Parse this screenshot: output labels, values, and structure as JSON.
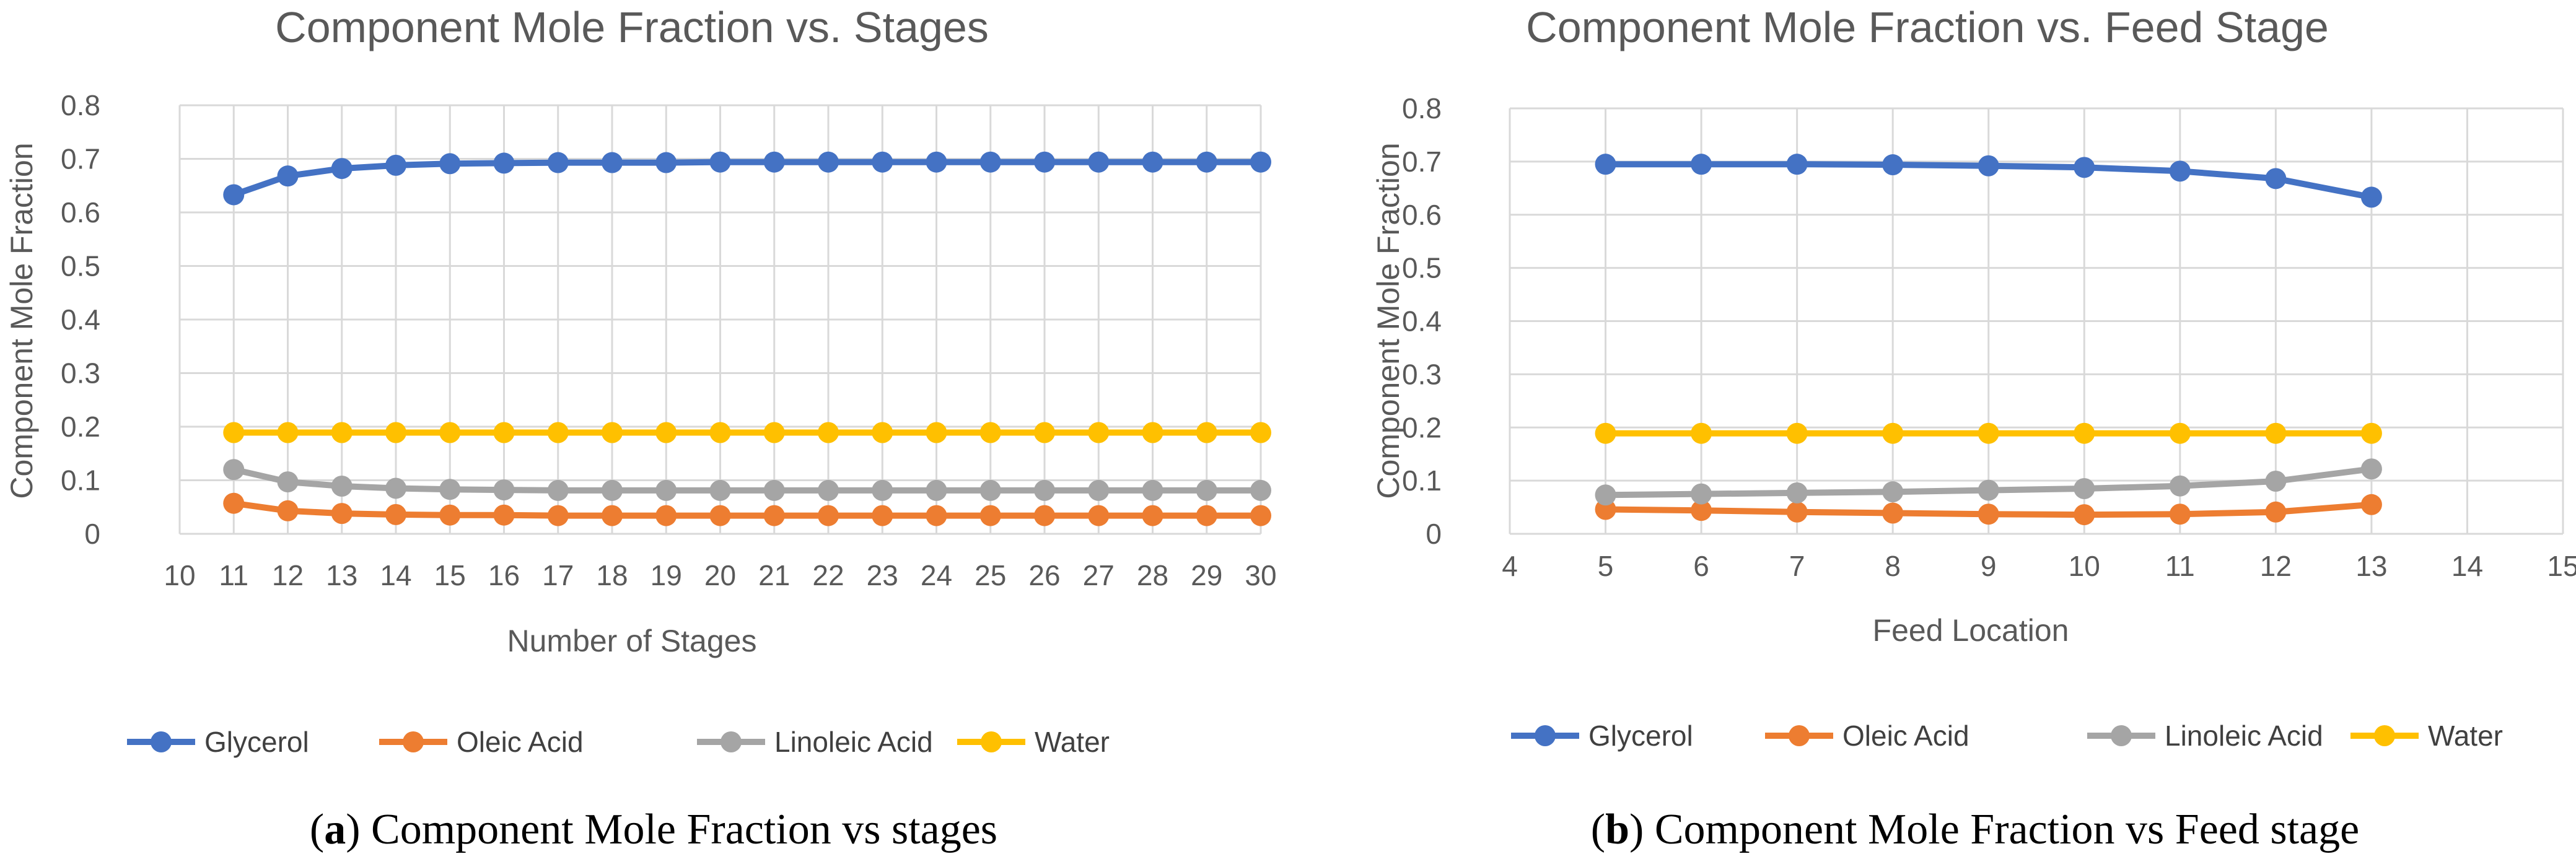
{
  "figure": {
    "panel_count": 2
  },
  "chart_data": [
    {
      "type": "line",
      "title": "Component Mole Fraction vs. Stages",
      "xlabel": "Number of Stages",
      "ylabel": "Component Mole Fraction",
      "xlim": [
        10,
        30
      ],
      "ylim": [
        0,
        0.8
      ],
      "x_ticks": [
        "10",
        "11",
        "12",
        "13",
        "14",
        "15",
        "16",
        "17",
        "18",
        "19",
        "20",
        "21",
        "22",
        "23",
        "24",
        "25",
        "26",
        "27",
        "28",
        "29",
        "30"
      ],
      "y_ticks": [
        "0",
        "0.1",
        "0.2",
        "0.3",
        "0.4",
        "0.5",
        "0.6",
        "0.7",
        "0.8"
      ],
      "x": [
        11,
        12,
        13,
        14,
        15,
        16,
        17,
        18,
        19,
        20,
        21,
        22,
        23,
        24,
        25,
        26,
        27,
        28,
        29,
        30
      ],
      "grid": "vertical and horizontal",
      "legend_position": "bottom",
      "caption_letter": "a",
      "caption_text": "Component Mole Fraction vs stages",
      "series": [
        {
          "name": "Glycerol",
          "color": "#4472C4",
          "values": [
            0.633,
            0.668,
            0.682,
            0.688,
            0.691,
            0.692,
            0.693,
            0.693,
            0.693,
            0.694,
            0.694,
            0.694,
            0.694,
            0.694,
            0.694,
            0.694,
            0.694,
            0.694,
            0.694,
            0.694
          ]
        },
        {
          "name": "Oleic Acid",
          "color": "#ED7D31",
          "values": [
            0.057,
            0.043,
            0.038,
            0.036,
            0.035,
            0.035,
            0.034,
            0.034,
            0.034,
            0.034,
            0.034,
            0.034,
            0.034,
            0.034,
            0.034,
            0.034,
            0.034,
            0.034,
            0.034,
            0.034
          ]
        },
        {
          "name": "Linoleic Acid",
          "color": "#A5A5A5",
          "values": [
            0.12,
            0.097,
            0.089,
            0.085,
            0.083,
            0.082,
            0.081,
            0.081,
            0.081,
            0.081,
            0.081,
            0.081,
            0.081,
            0.081,
            0.081,
            0.081,
            0.081,
            0.081,
            0.081,
            0.081
          ]
        },
        {
          "name": "Water",
          "color": "#FFC000",
          "values": [
            0.189,
            0.189,
            0.189,
            0.189,
            0.189,
            0.189,
            0.189,
            0.189,
            0.189,
            0.189,
            0.189,
            0.189,
            0.189,
            0.189,
            0.189,
            0.189,
            0.189,
            0.189,
            0.189,
            0.189
          ]
        }
      ]
    },
    {
      "type": "line",
      "title": "Component Mole Fraction vs. Feed Stage",
      "xlabel": "Feed Location",
      "ylabel": "Component Mole Fraction",
      "xlim": [
        4,
        15
      ],
      "ylim": [
        0,
        0.8
      ],
      "x_ticks": [
        "4",
        "5",
        "6",
        "7",
        "8",
        "9",
        "10",
        "11",
        "12",
        "13",
        "14",
        "15"
      ],
      "y_ticks": [
        "0",
        "0.1",
        "0.2",
        "0.3",
        "0.4",
        "0.5",
        "0.6",
        "0.7",
        "0.8"
      ],
      "x": [
        5,
        6,
        7,
        8,
        9,
        10,
        11,
        12,
        13
      ],
      "grid": "vertical and horizontal",
      "legend_position": "bottom",
      "caption_letter": "b",
      "caption_text": "Component Mole Fraction vs Feed stage",
      "series": [
        {
          "name": "Glycerol",
          "color": "#4472C4",
          "values": [
            0.695,
            0.695,
            0.695,
            0.694,
            0.692,
            0.689,
            0.682,
            0.668,
            0.633
          ]
        },
        {
          "name": "Oleic Acid",
          "color": "#ED7D31",
          "values": [
            0.046,
            0.044,
            0.041,
            0.039,
            0.037,
            0.036,
            0.037,
            0.041,
            0.055
          ]
        },
        {
          "name": "Linoleic Acid",
          "color": "#A5A5A5",
          "values": [
            0.073,
            0.075,
            0.077,
            0.079,
            0.082,
            0.085,
            0.09,
            0.099,
            0.122
          ]
        },
        {
          "name": "Water",
          "color": "#FFC000",
          "values": [
            0.189,
            0.189,
            0.189,
            0.189,
            0.189,
            0.189,
            0.189,
            0.189,
            0.189
          ]
        }
      ]
    }
  ]
}
